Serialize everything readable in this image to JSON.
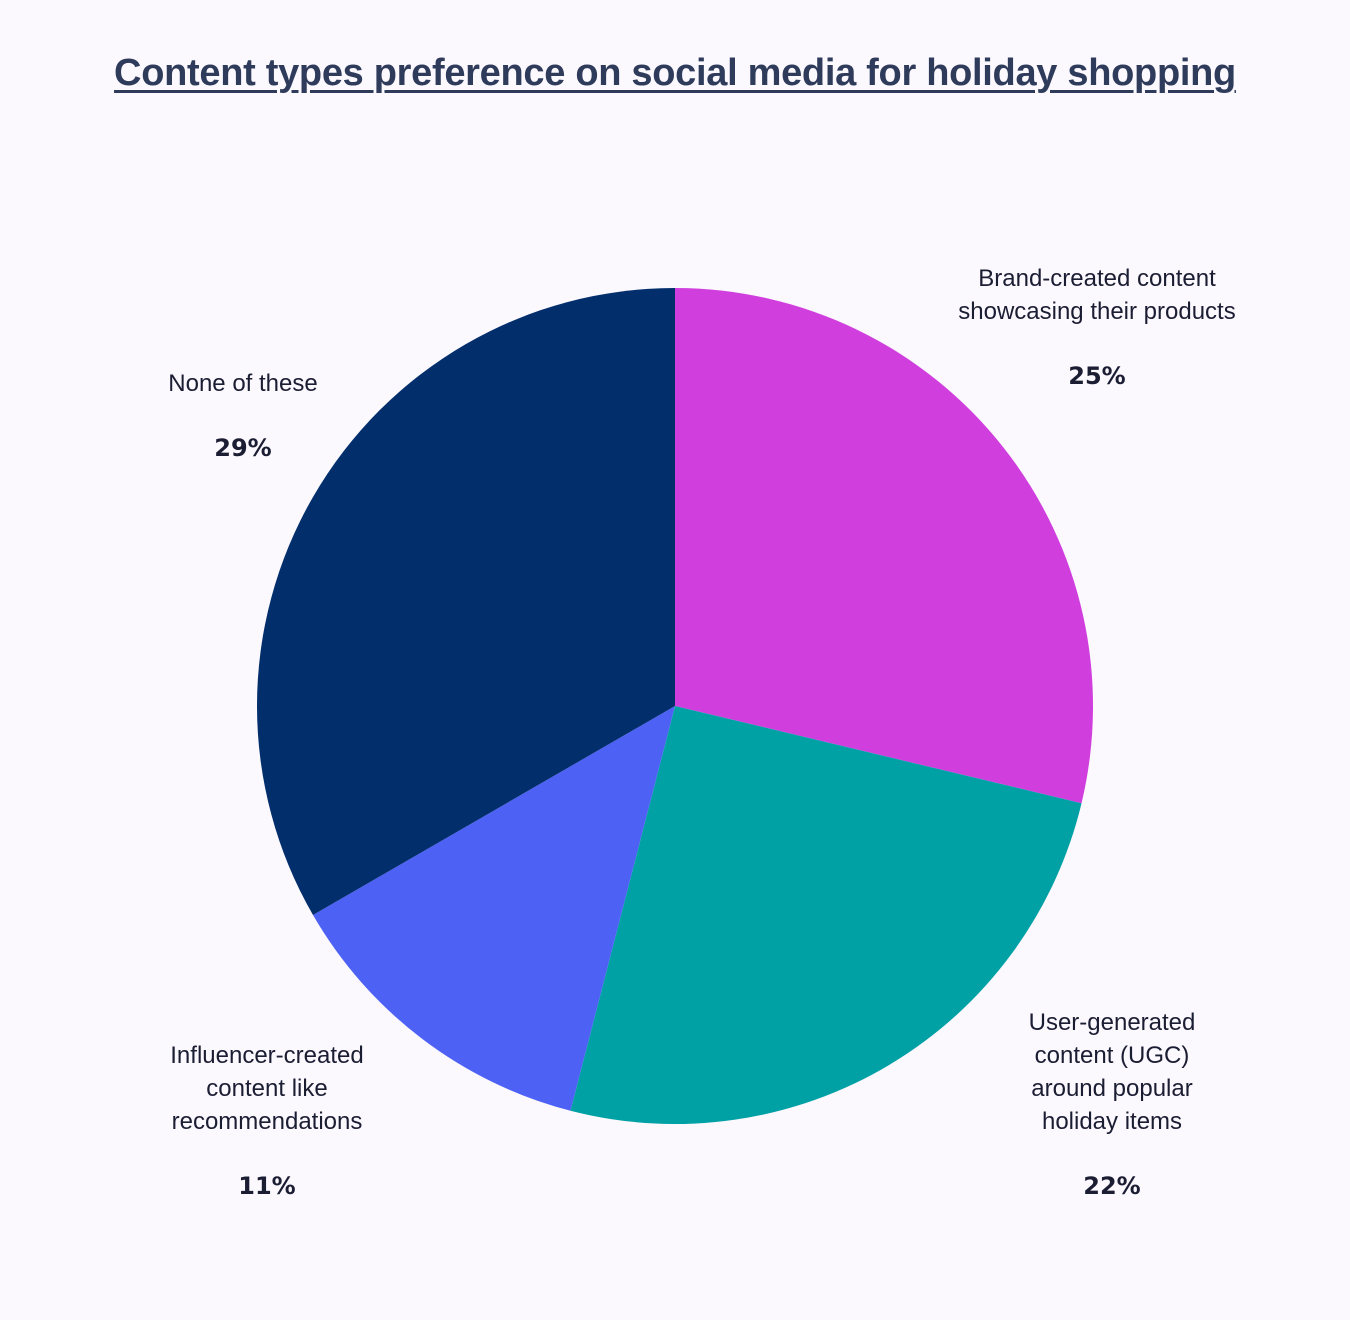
{
  "chart_data": {
    "type": "pie",
    "title": "Content types preference on social media for holiday shopping",
    "slices": [
      {
        "label": "Brand-created content showcasing their products",
        "value": 25,
        "value_label": "25%",
        "color": "#d03fde"
      },
      {
        "label": "User-generated content (UGC) around popular holiday items",
        "value": 22,
        "value_label": "22%",
        "color": "#00a1a5"
      },
      {
        "label": "Influencer-created content like recommendations",
        "value": 11,
        "value_label": "11%",
        "color": "#4d62f5"
      },
      {
        "label": "None of these",
        "value": 29,
        "value_label": "29%",
        "color": "#022e6c"
      }
    ],
    "start_angle": "12 o'clock",
    "direction": "clockwise"
  }
}
